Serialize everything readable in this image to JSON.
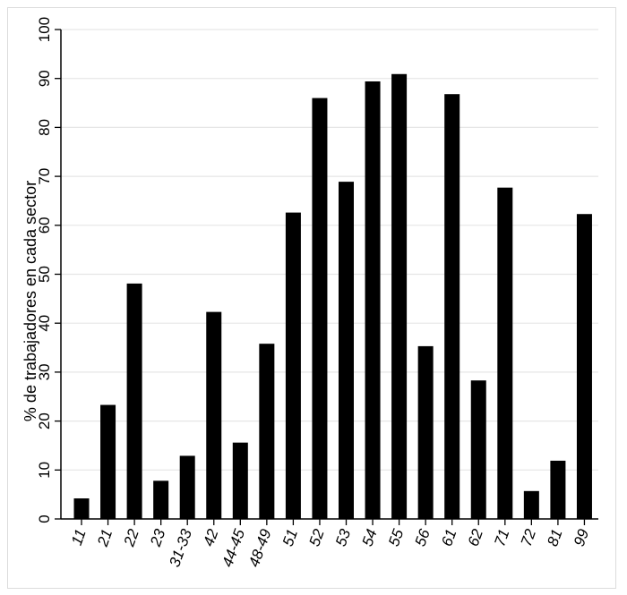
{
  "chart_data": {
    "type": "bar",
    "title": "",
    "xlabel": "",
    "ylabel": "% de trabajadores en cada sector",
    "ylim": [
      0,
      100
    ],
    "yticks": [
      0,
      10,
      20,
      30,
      40,
      50,
      60,
      70,
      80,
      90,
      100
    ],
    "grid": true,
    "legend": "none",
    "bar_color": "#000000",
    "grid_color": "#e6e6e6",
    "categories": [
      "11",
      "21",
      "22",
      "23",
      "31-33",
      "42",
      "44-45",
      "48-49",
      "51",
      "52",
      "53",
      "54",
      "55",
      "56",
      "61",
      "62",
      "71",
      "72",
      "81",
      "99"
    ],
    "values": [
      4.2,
      23.3,
      48.1,
      7.8,
      12.9,
      42.3,
      15.6,
      35.8,
      62.6,
      86.0,
      68.9,
      89.4,
      90.9,
      35.3,
      86.8,
      28.3,
      67.7,
      5.7,
      11.9,
      62.3
    ]
  }
}
